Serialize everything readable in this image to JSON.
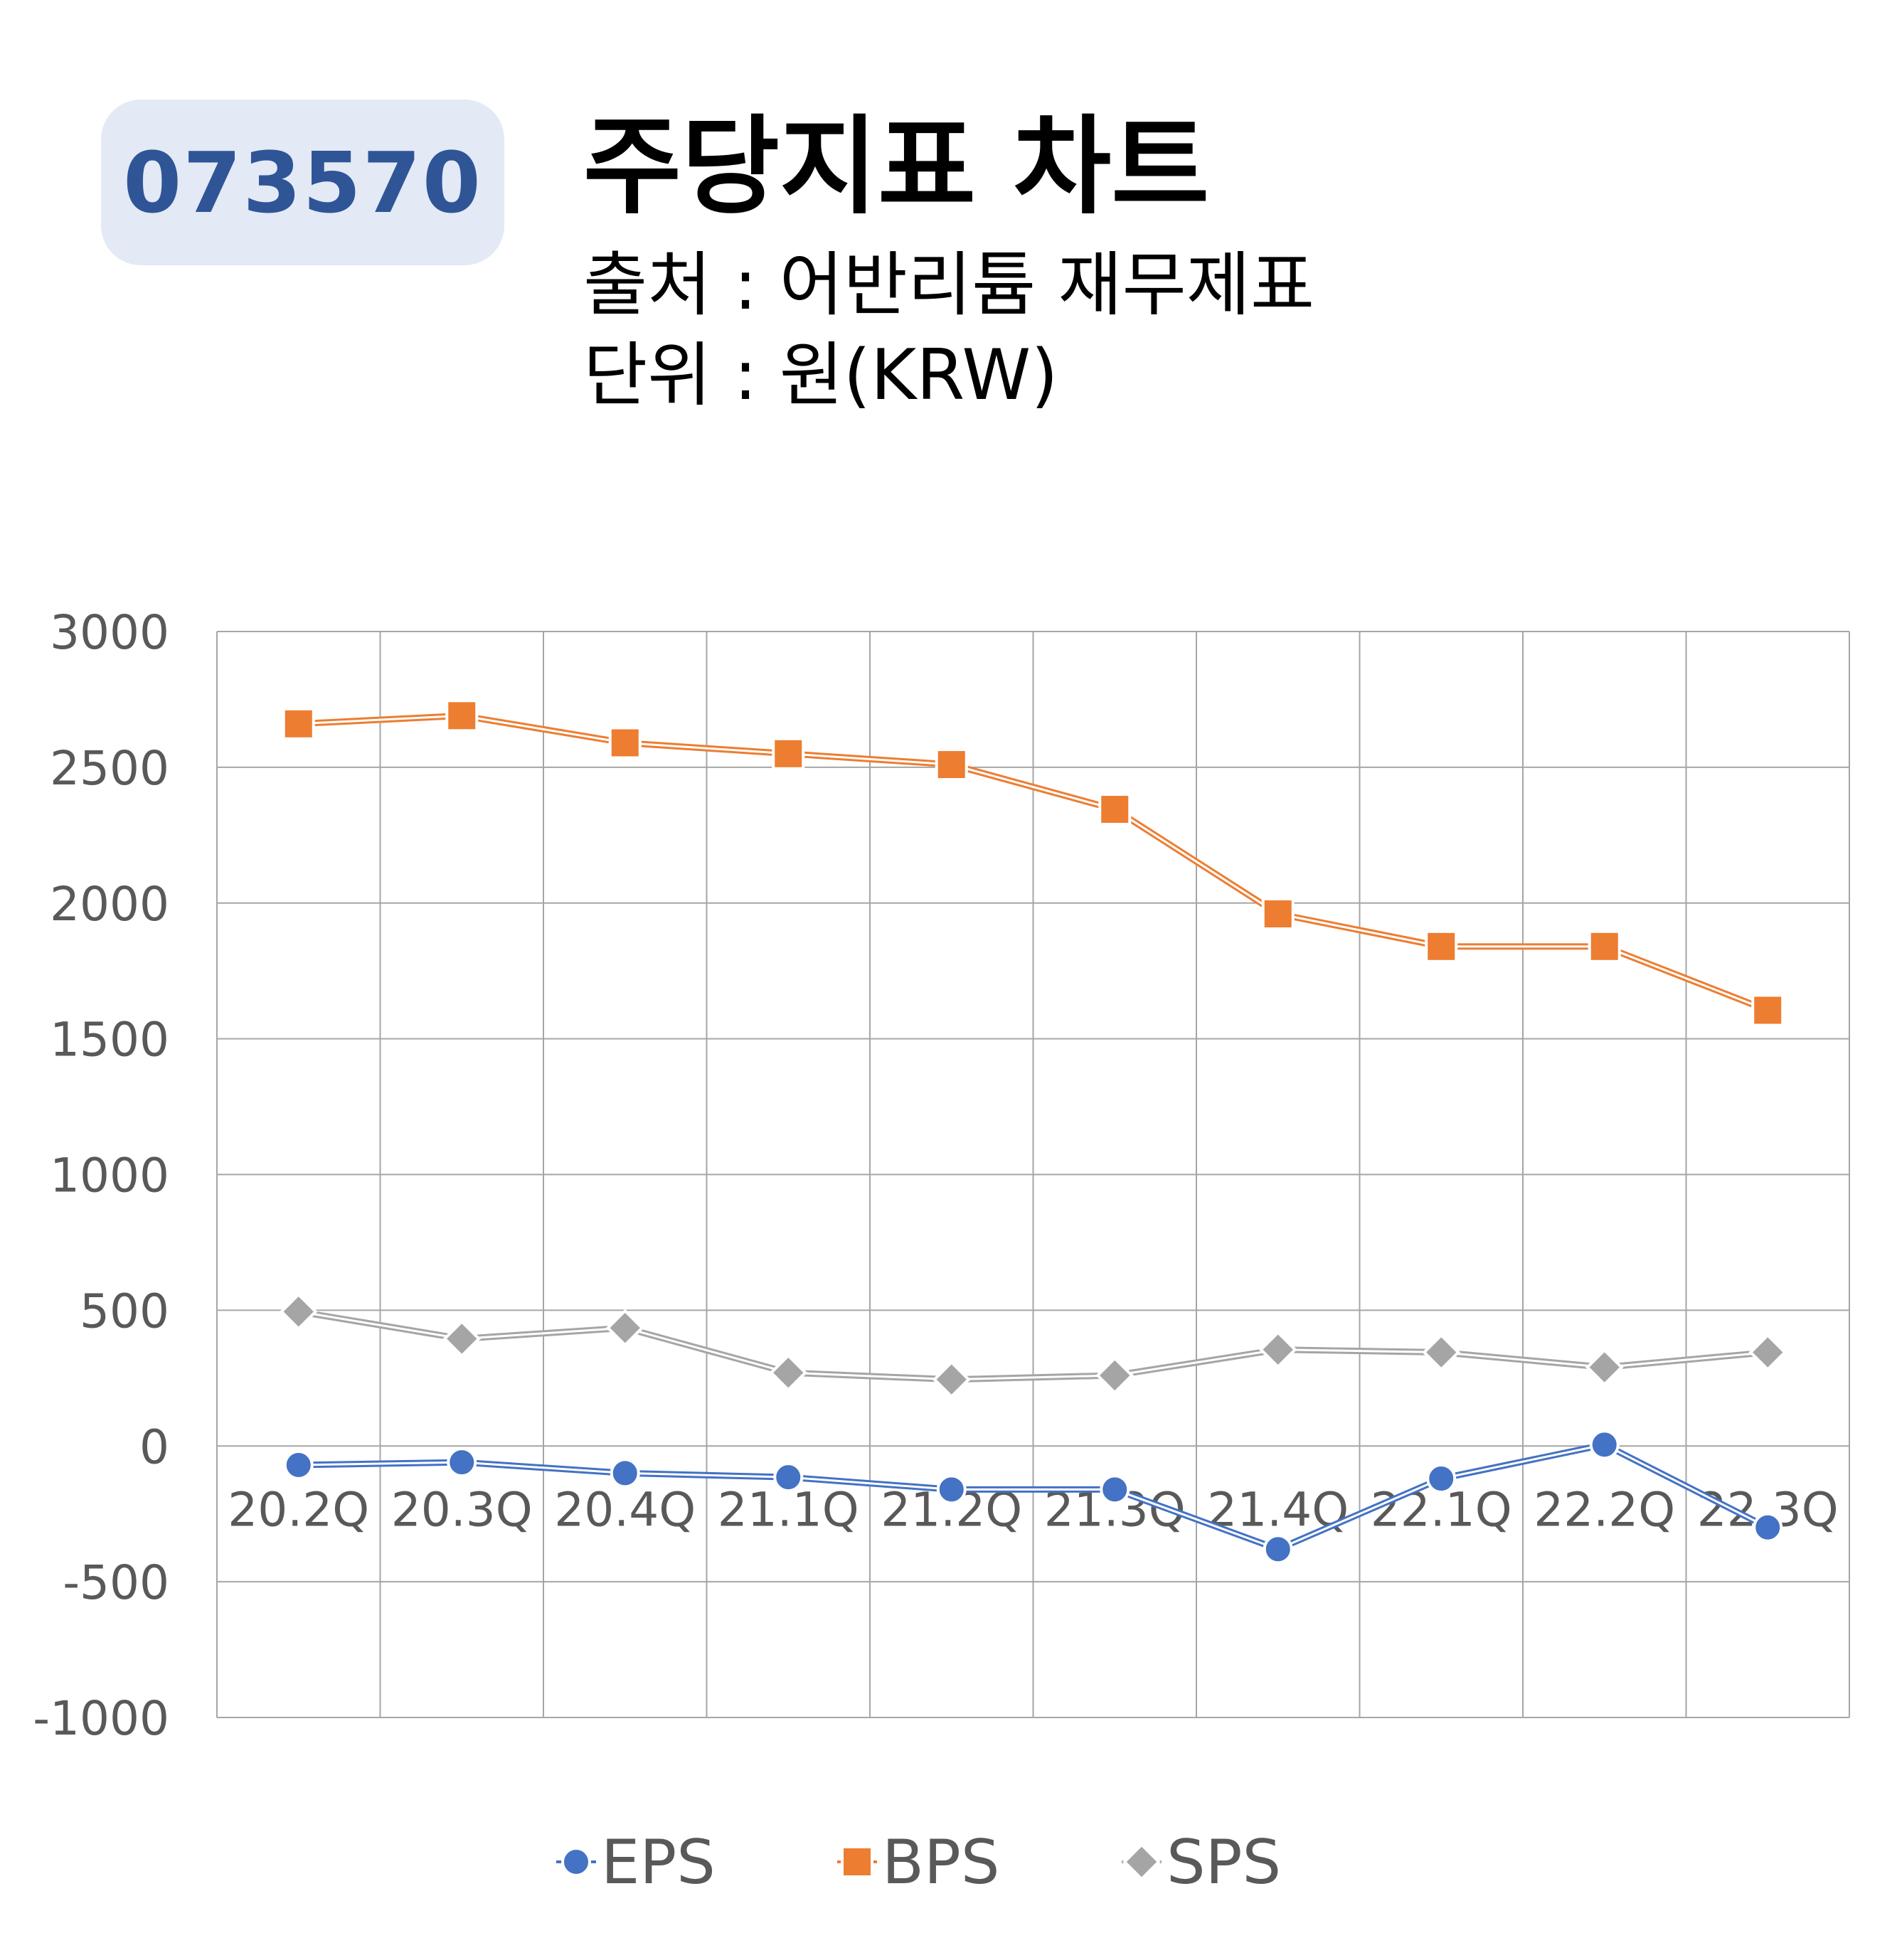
{
  "header": {
    "ticker": "073570",
    "title": "주당지표 차트",
    "source": "출처 : 어반리튬 재무제표",
    "unit": "단위 : 원(KRW)"
  },
  "colors": {
    "eps": "#4472c4",
    "bps": "#ed7d31",
    "sps": "#a5a5a5",
    "badge_bg": "#e3e9f5",
    "badge_text": "#2f5597",
    "grid": "#a6a6a6"
  },
  "chart_data": {
    "type": "line",
    "categories": [
      "20.2Q",
      "20.3Q",
      "20.4Q",
      "21.1Q",
      "21.2Q",
      "21.3Q",
      "21.4Q",
      "22.1Q",
      "22.2Q",
      "22.3Q"
    ],
    "ylim": [
      -1000,
      3000
    ],
    "yticks": [
      3000,
      2500,
      2000,
      1500,
      1000,
      500,
      0,
      -500,
      -1000
    ],
    "grid": true,
    "legend": "bottom",
    "series": [
      {
        "name": "EPS",
        "marker": "circle",
        "values": [
          -70,
          -60,
          -100,
          -115,
          -160,
          -160,
          -380,
          -120,
          5,
          -300
        ]
      },
      {
        "name": "BPS",
        "marker": "square",
        "values": [
          2660,
          2690,
          2590,
          2550,
          2510,
          2345,
          1960,
          1840,
          1840,
          1605
        ]
      },
      {
        "name": "SPS",
        "marker": "diamond",
        "values": [
          495,
          395,
          435,
          270,
          245,
          260,
          355,
          345,
          290,
          345
        ]
      }
    ]
  }
}
